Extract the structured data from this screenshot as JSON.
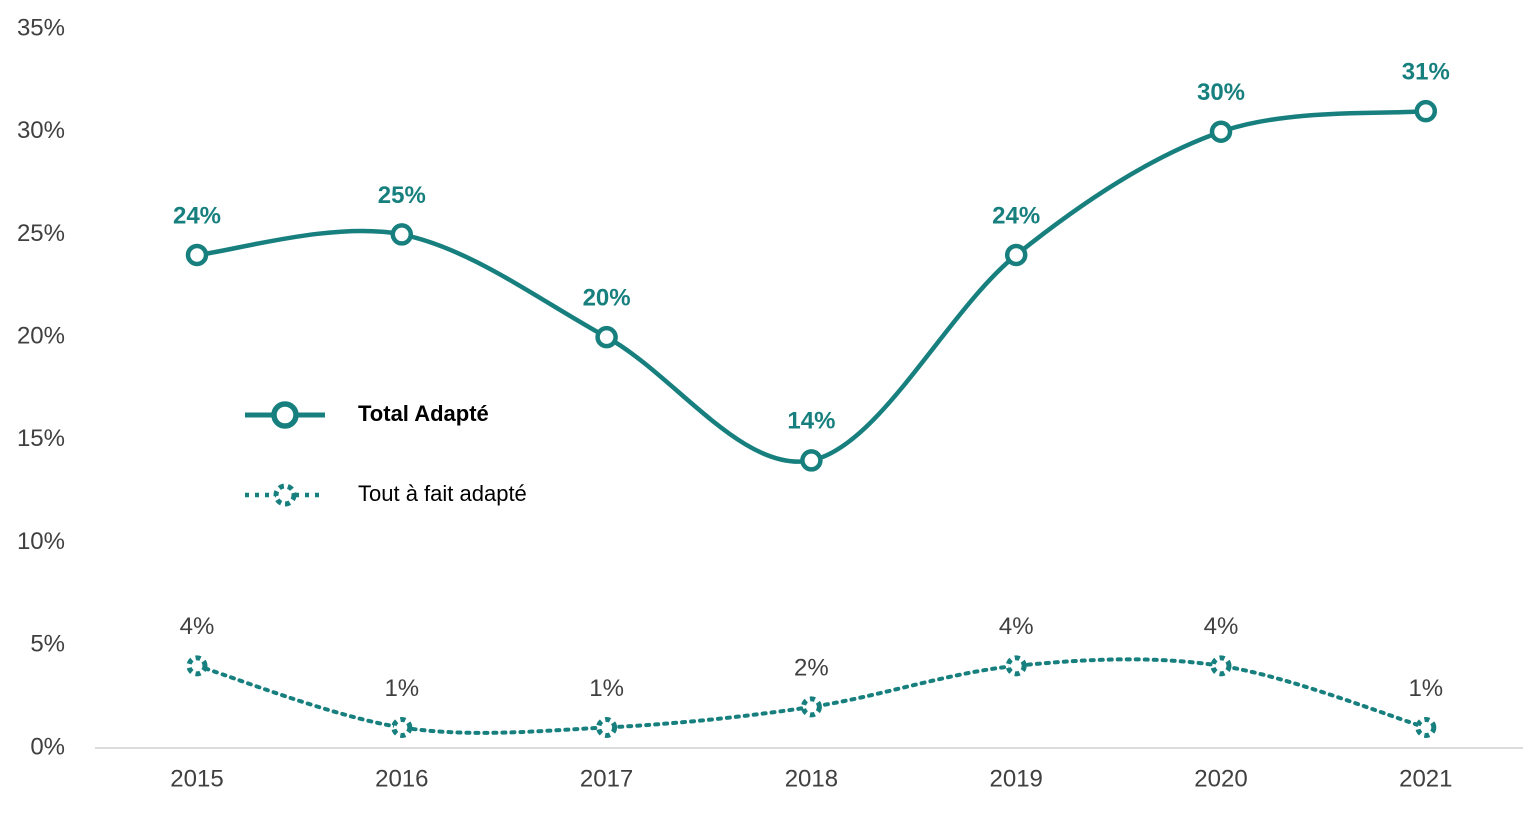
{
  "chart_data": {
    "type": "line",
    "categories": [
      "2015",
      "2016",
      "2017",
      "2018",
      "2019",
      "2020",
      "2021"
    ],
    "series": [
      {
        "name": "Total Adapté",
        "color": "#17807e",
        "style": "solid",
        "values": [
          24,
          25,
          20,
          14,
          24,
          30,
          31
        ],
        "value_labels": [
          "24%",
          "25%",
          "20%",
          "14%",
          "24%",
          "30%",
          "31%"
        ]
      },
      {
        "name": "Tout à fait adapté",
        "color": "#17807e",
        "style": "dotted",
        "values": [
          4,
          1,
          1,
          2,
          4,
          4,
          1
        ],
        "value_labels": [
          "4%",
          "1%",
          "1%",
          "2%",
          "4%",
          "4%",
          "1%"
        ]
      }
    ],
    "ylim": [
      0,
      35
    ],
    "yticks": [
      {
        "value": 0,
        "label": "0%"
      },
      {
        "value": 5,
        "label": "5%"
      },
      {
        "value": 10,
        "label": "10%"
      },
      {
        "value": 15,
        "label": "15%"
      },
      {
        "value": 20,
        "label": "20%"
      },
      {
        "value": 25,
        "label": "25%"
      },
      {
        "value": 30,
        "label": "30%"
      },
      {
        "value": 35,
        "label": "35%"
      }
    ],
    "smooth": true,
    "grid": false,
    "legend": "left"
  }
}
